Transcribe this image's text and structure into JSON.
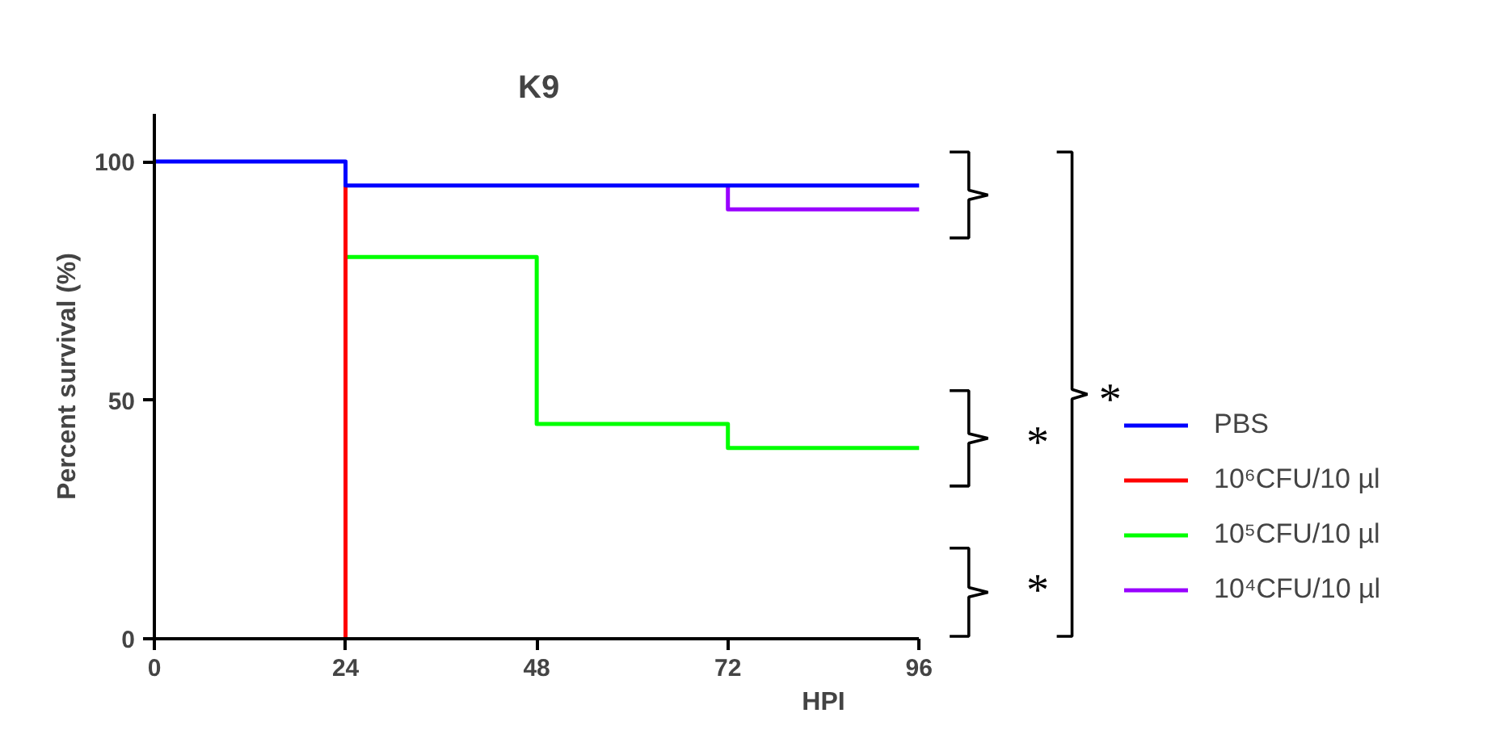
{
  "chart_data": {
    "type": "step",
    "title": "K9",
    "xlabel": "HPI",
    "ylabel": "Percent survival (%)",
    "series": [
      {
        "name": "PBS",
        "color": "#0000ff",
        "x": [
          0,
          24,
          96
        ],
        "values": [
          100,
          95,
          95
        ]
      },
      {
        "name": "10⁶CFU/10 µl",
        "color": "#ff0000",
        "x": [
          24,
          24
        ],
        "values": [
          95,
          0
        ]
      },
      {
        "name": "10⁵CFU/10 µl",
        "color": "#00ff00",
        "x": [
          24,
          48,
          72,
          96
        ],
        "values": [
          80,
          45,
          40,
          40
        ]
      },
      {
        "name": "10⁴CFU/10 µl",
        "color": "#9900ff",
        "x": [
          72,
          72,
          96
        ],
        "values": [
          95,
          90,
          90
        ]
      }
    ],
    "xlim": [
      0,
      96
    ],
    "ylim": [
      0,
      110
    ],
    "xticks": [
      0,
      24,
      48,
      72,
      96
    ],
    "yticks": [
      0,
      50,
      100
    ],
    "grid": false,
    "legend": "right",
    "line_style": "solid",
    "annotations": [
      "*",
      "*",
      "*"
    ]
  }
}
